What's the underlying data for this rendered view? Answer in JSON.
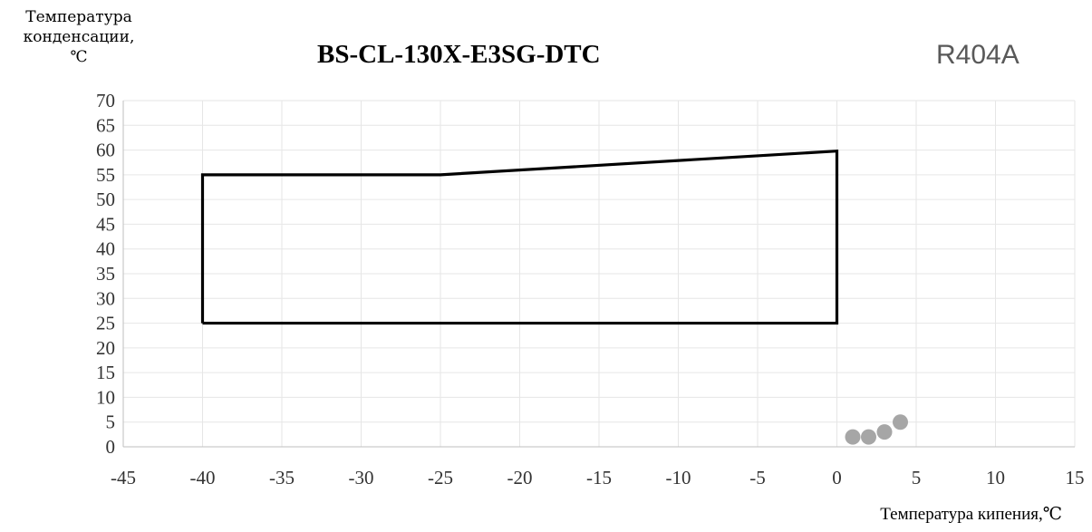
{
  "chart_data": {
    "type": "line",
    "title": "BS-CL-130X-E3SG-DTC",
    "refrigerant": "R404A",
    "ylabel": "Температура\nконденсации,\n℃",
    "xlabel": "Температура кипения,℃",
    "xlim": [
      -45,
      15
    ],
    "ylim": [
      0,
      70
    ],
    "x_ticks": [
      "-45",
      "-40",
      "-35",
      "-30",
      "-25",
      "-20",
      "-15",
      "-10",
      "-5",
      "0",
      "5",
      "10",
      "15"
    ],
    "y_ticks": [
      "0",
      "5",
      "10",
      "15",
      "20",
      "25",
      "30",
      "35",
      "40",
      "45",
      "50",
      "55",
      "60",
      "65",
      "70"
    ],
    "grid": true,
    "series": [
      {
        "type": "line",
        "color": "#000000",
        "x": [
          -40,
          -40,
          -25,
          0,
          0,
          -40
        ],
        "y": [
          25,
          55,
          55,
          59.8,
          25,
          25
        ]
      },
      {
        "type": "scatter",
        "color": "#a6a6a6",
        "x": [
          1,
          2,
          3,
          4
        ],
        "y": [
          2,
          2,
          3,
          5
        ]
      }
    ]
  }
}
